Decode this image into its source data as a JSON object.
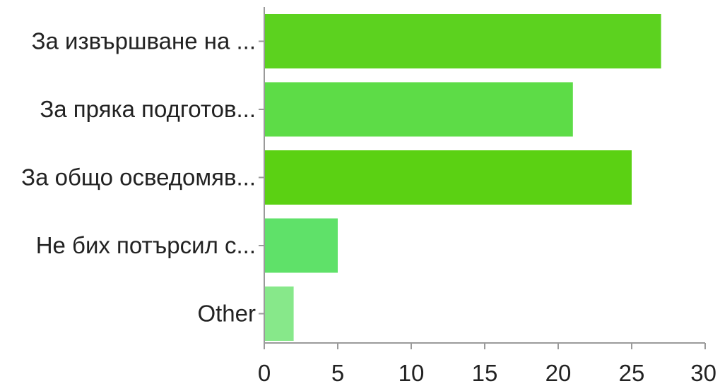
{
  "chart_data": {
    "type": "bar",
    "orientation": "horizontal",
    "title": "",
    "xlabel": "",
    "ylabel": "",
    "categories": [
      "За извършване на ...",
      "За пряка подготов...",
      "За общо осведомяв...",
      "Не бих потърсил с...",
      "Other"
    ],
    "values": [
      27,
      21,
      25,
      5,
      2
    ],
    "bar_colors": [
      "#5cd21f",
      "#5ddc47",
      "#5bd113",
      "#5fe169",
      "#87e88a"
    ],
    "xlim": [
      0,
      30
    ],
    "x_ticks": [
      0,
      5,
      10,
      15,
      20,
      25,
      30
    ],
    "grid": false,
    "legend": "none"
  }
}
